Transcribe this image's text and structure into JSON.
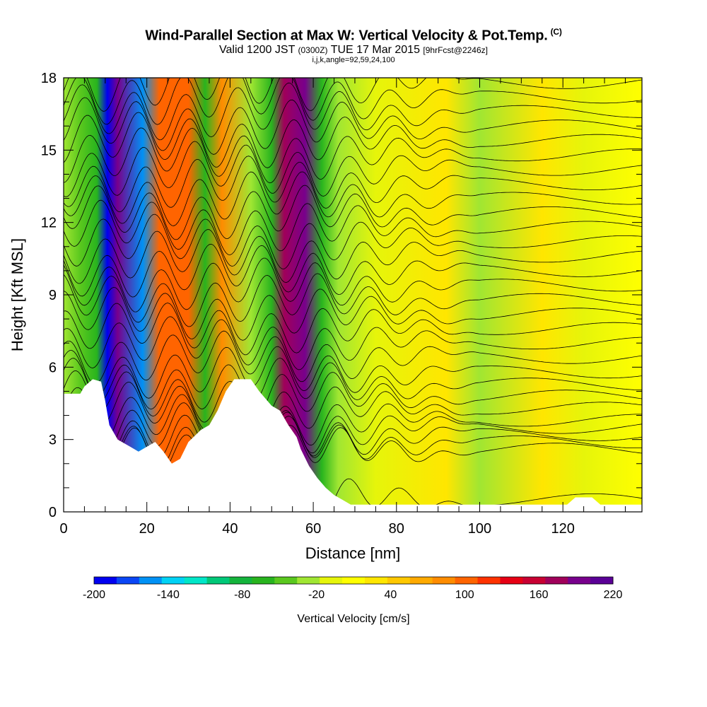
{
  "title": "Wind-Parallel Section at Max W: Vertical Velocity & Pot.Temp.",
  "title_mark": "(C)",
  "subtitle_main": "Valid 1200 JST",
  "subtitle_utc": "(0300Z)",
  "subtitle_date": "TUE 17 Mar 2015",
  "subtitle_fcst": "[9hrFcst@2246z]",
  "params": "i,j,k,angle=92,59,24,100",
  "chart_data": {
    "type": "heatmap",
    "title": "Wind-Parallel Section at Max W: Vertical Velocity & Pot.Temp.",
    "xlabel": "Distance [nm]",
    "ylabel": "Height [Kft MSL]",
    "xlim": [
      0,
      139
    ],
    "ylim": [
      0,
      18
    ],
    "x_ticks": [
      0,
      20,
      40,
      60,
      80,
      100,
      120
    ],
    "y_ticks": [
      0,
      3,
      6,
      9,
      12,
      15,
      18
    ],
    "colorbar": {
      "label": "Vertical Velocity [cm/s]",
      "ticks": [
        -200,
        -140,
        -80,
        -20,
        40,
        100,
        160,
        220
      ],
      "colors": [
        "#0000f0",
        "#0a46f5",
        "#0091f5",
        "#00d2f5",
        "#00e6c8",
        "#00c878",
        "#14b43c",
        "#28b41e",
        "#5ac81e",
        "#a0e632",
        "#e6f50a",
        "#ffff00",
        "#ffe600",
        "#ffc800",
        "#ffaa00",
        "#ff8c00",
        "#ff6400",
        "#ff3200",
        "#e60014",
        "#c80032",
        "#a0005a",
        "#78008c",
        "#5a0096"
      ]
    },
    "series": [
      {
        "name": "Vertical Velocity [cm/s]",
        "features": [
          {
            "x": 10.5,
            "value": -190
          },
          {
            "x": 13,
            "value": 200
          },
          {
            "x": 19,
            "value": -150
          },
          {
            "x": 23,
            "value": 110
          },
          {
            "x": 30,
            "value": 100
          },
          {
            "x": 34,
            "value": -60
          },
          {
            "x": 38,
            "value": 80
          },
          {
            "x": 53,
            "value": 170
          },
          {
            "x": 58,
            "value": 200
          },
          {
            "x": 92,
            "value": 30
          }
        ]
      }
    ],
    "isentrope_heights": [
      0.5,
      2.6,
      2.9,
      3.2,
      3.5,
      3.8,
      4.3,
      4.8,
      5.3,
      5.8,
      6.4,
      7.0,
      7.6,
      8.2,
      8.8,
      9.4,
      10.0,
      10.6,
      11.2,
      11.8,
      12.4,
      13.0,
      13.6,
      14.2,
      14.8,
      15.4,
      16.0,
      16.6,
      17.2,
      17.8
    ],
    "terrain": [
      [
        0,
        4.9
      ],
      [
        4,
        4.9
      ],
      [
        5,
        5.2
      ],
      [
        7,
        5.5
      ],
      [
        9,
        5.4
      ],
      [
        10,
        4.6
      ],
      [
        11,
        3.6
      ],
      [
        13,
        3.0
      ],
      [
        16,
        2.7
      ],
      [
        18,
        2.5
      ],
      [
        20,
        2.7
      ],
      [
        22,
        2.9
      ],
      [
        24,
        2.5
      ],
      [
        26,
        2.0
      ],
      [
        28,
        2.2
      ],
      [
        30,
        2.9
      ],
      [
        33,
        3.4
      ],
      [
        35,
        3.6
      ],
      [
        37,
        4.2
      ],
      [
        39,
        5.0
      ],
      [
        41,
        5.5
      ],
      [
        45,
        5.5
      ],
      [
        47,
        5.0
      ],
      [
        50,
        4.4
      ],
      [
        52,
        4.2
      ],
      [
        54,
        3.6
      ],
      [
        56,
        3.1
      ],
      [
        57,
        2.6
      ],
      [
        59,
        1.9
      ],
      [
        61,
        1.4
      ],
      [
        63,
        1.0
      ],
      [
        65,
        0.7
      ],
      [
        67,
        0.5
      ],
      [
        69,
        0.3
      ],
      [
        72,
        0.3
      ],
      [
        80,
        0.3
      ],
      [
        100,
        0.3
      ],
      [
        121,
        0.3
      ],
      [
        123,
        0.6
      ],
      [
        127,
        0.6
      ],
      [
        129,
        0.3
      ],
      [
        139,
        0.3
      ]
    ]
  }
}
